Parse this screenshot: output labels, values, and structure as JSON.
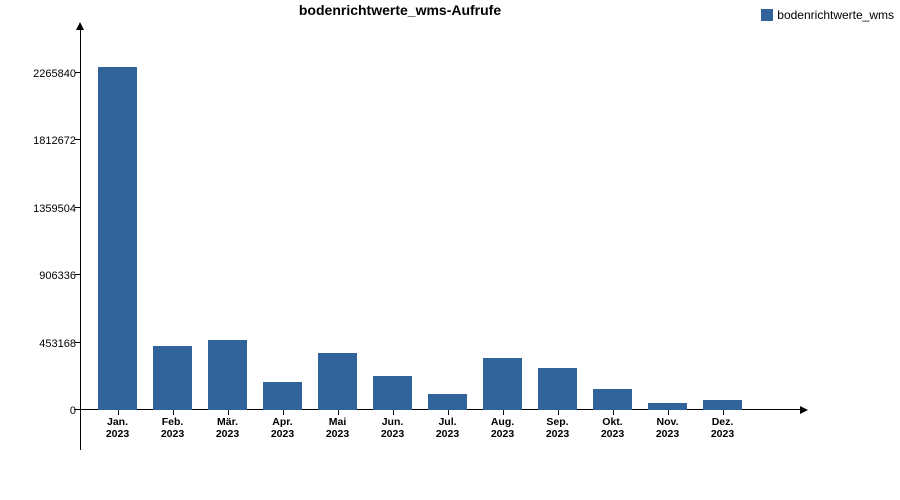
{
  "chart": {
    "type": "bar",
    "title": "bodenrichtwerte_wms-Aufrufe",
    "title_fontsize": 14,
    "legend": {
      "label": "bodenrichtwerte_wms",
      "swatch_color": "#2f6399"
    },
    "series_color": "#2f6399",
    "background_color": "#ffffff",
    "axis_color": "#000000",
    "bar_width_ratio": 0.72,
    "y": {
      "min": 0,
      "max": 2350000,
      "ticks": [
        0,
        453168,
        906336,
        1359504,
        1812672,
        2265840
      ]
    },
    "categories": [
      "Jan.\n2023",
      "Feb.\n2023",
      "Mär.\n2023",
      "Apr.\n2023",
      "Mai\n2023",
      "Jun.\n2023",
      "Jul.\n2023",
      "Aug.\n2023",
      "Sep.\n2023",
      "Okt.\n2023",
      "Nov.\n2023",
      "Dez.\n2023"
    ],
    "values": [
      2300000,
      430000,
      470000,
      190000,
      380000,
      230000,
      110000,
      350000,
      280000,
      140000,
      45000,
      70000
    ],
    "label_fontsize": 10.5,
    "tick_fontsize": 11
  }
}
